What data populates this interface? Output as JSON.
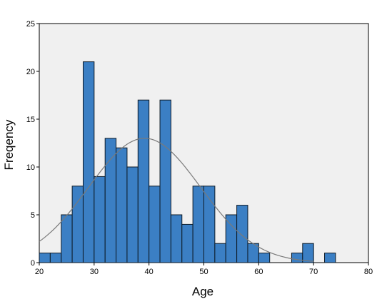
{
  "chart_data": {
    "type": "bar",
    "xlabel": "Age",
    "ylabel": "Freqency",
    "xlim": [
      20,
      80
    ],
    "ylim": [
      0,
      25
    ],
    "xticks": [
      "20",
      "30",
      "40",
      "50",
      "60",
      "70",
      "80"
    ],
    "yticks": [
      "0",
      "5",
      "10",
      "15",
      "20",
      "25"
    ],
    "bin_width": 2,
    "bins": [
      {
        "x0": 20,
        "x1": 22,
        "count": 1
      },
      {
        "x0": 22,
        "x1": 24,
        "count": 1
      },
      {
        "x0": 24,
        "x1": 26,
        "count": 5
      },
      {
        "x0": 26,
        "x1": 28,
        "count": 8
      },
      {
        "x0": 28,
        "x1": 30,
        "count": 21
      },
      {
        "x0": 30,
        "x1": 32,
        "count": 9
      },
      {
        "x0": 32,
        "x1": 34,
        "count": 13
      },
      {
        "x0": 34,
        "x1": 36,
        "count": 12
      },
      {
        "x0": 36,
        "x1": 38,
        "count": 10
      },
      {
        "x0": 38,
        "x1": 40,
        "count": 17
      },
      {
        "x0": 40,
        "x1": 42,
        "count": 8
      },
      {
        "x0": 42,
        "x1": 44,
        "count": 17
      },
      {
        "x0": 44,
        "x1": 46,
        "count": 5
      },
      {
        "x0": 46,
        "x1": 48,
        "count": 4
      },
      {
        "x0": 48,
        "x1": 50,
        "count": 8
      },
      {
        "x0": 50,
        "x1": 52,
        "count": 8
      },
      {
        "x0": 52,
        "x1": 54,
        "count": 2
      },
      {
        "x0": 54,
        "x1": 56,
        "count": 5
      },
      {
        "x0": 56,
        "x1": 58,
        "count": 6
      },
      {
        "x0": 58,
        "x1": 60,
        "count": 2
      },
      {
        "x0": 60,
        "x1": 62,
        "count": 1
      },
      {
        "x0": 66,
        "x1": 68,
        "count": 1
      },
      {
        "x0": 68,
        "x1": 70,
        "count": 2
      },
      {
        "x0": 72,
        "x1": 74,
        "count": 1
      }
    ],
    "normal_curve": {
      "mean": 39.2,
      "sd": 10.2,
      "peak": 13
    },
    "grid": false,
    "colors": {
      "bar_fill": "#3b7fc4",
      "bar_stroke": "#0d1a26",
      "plot_background": "#f0f0f0",
      "curve": "#7a7a7a"
    }
  }
}
